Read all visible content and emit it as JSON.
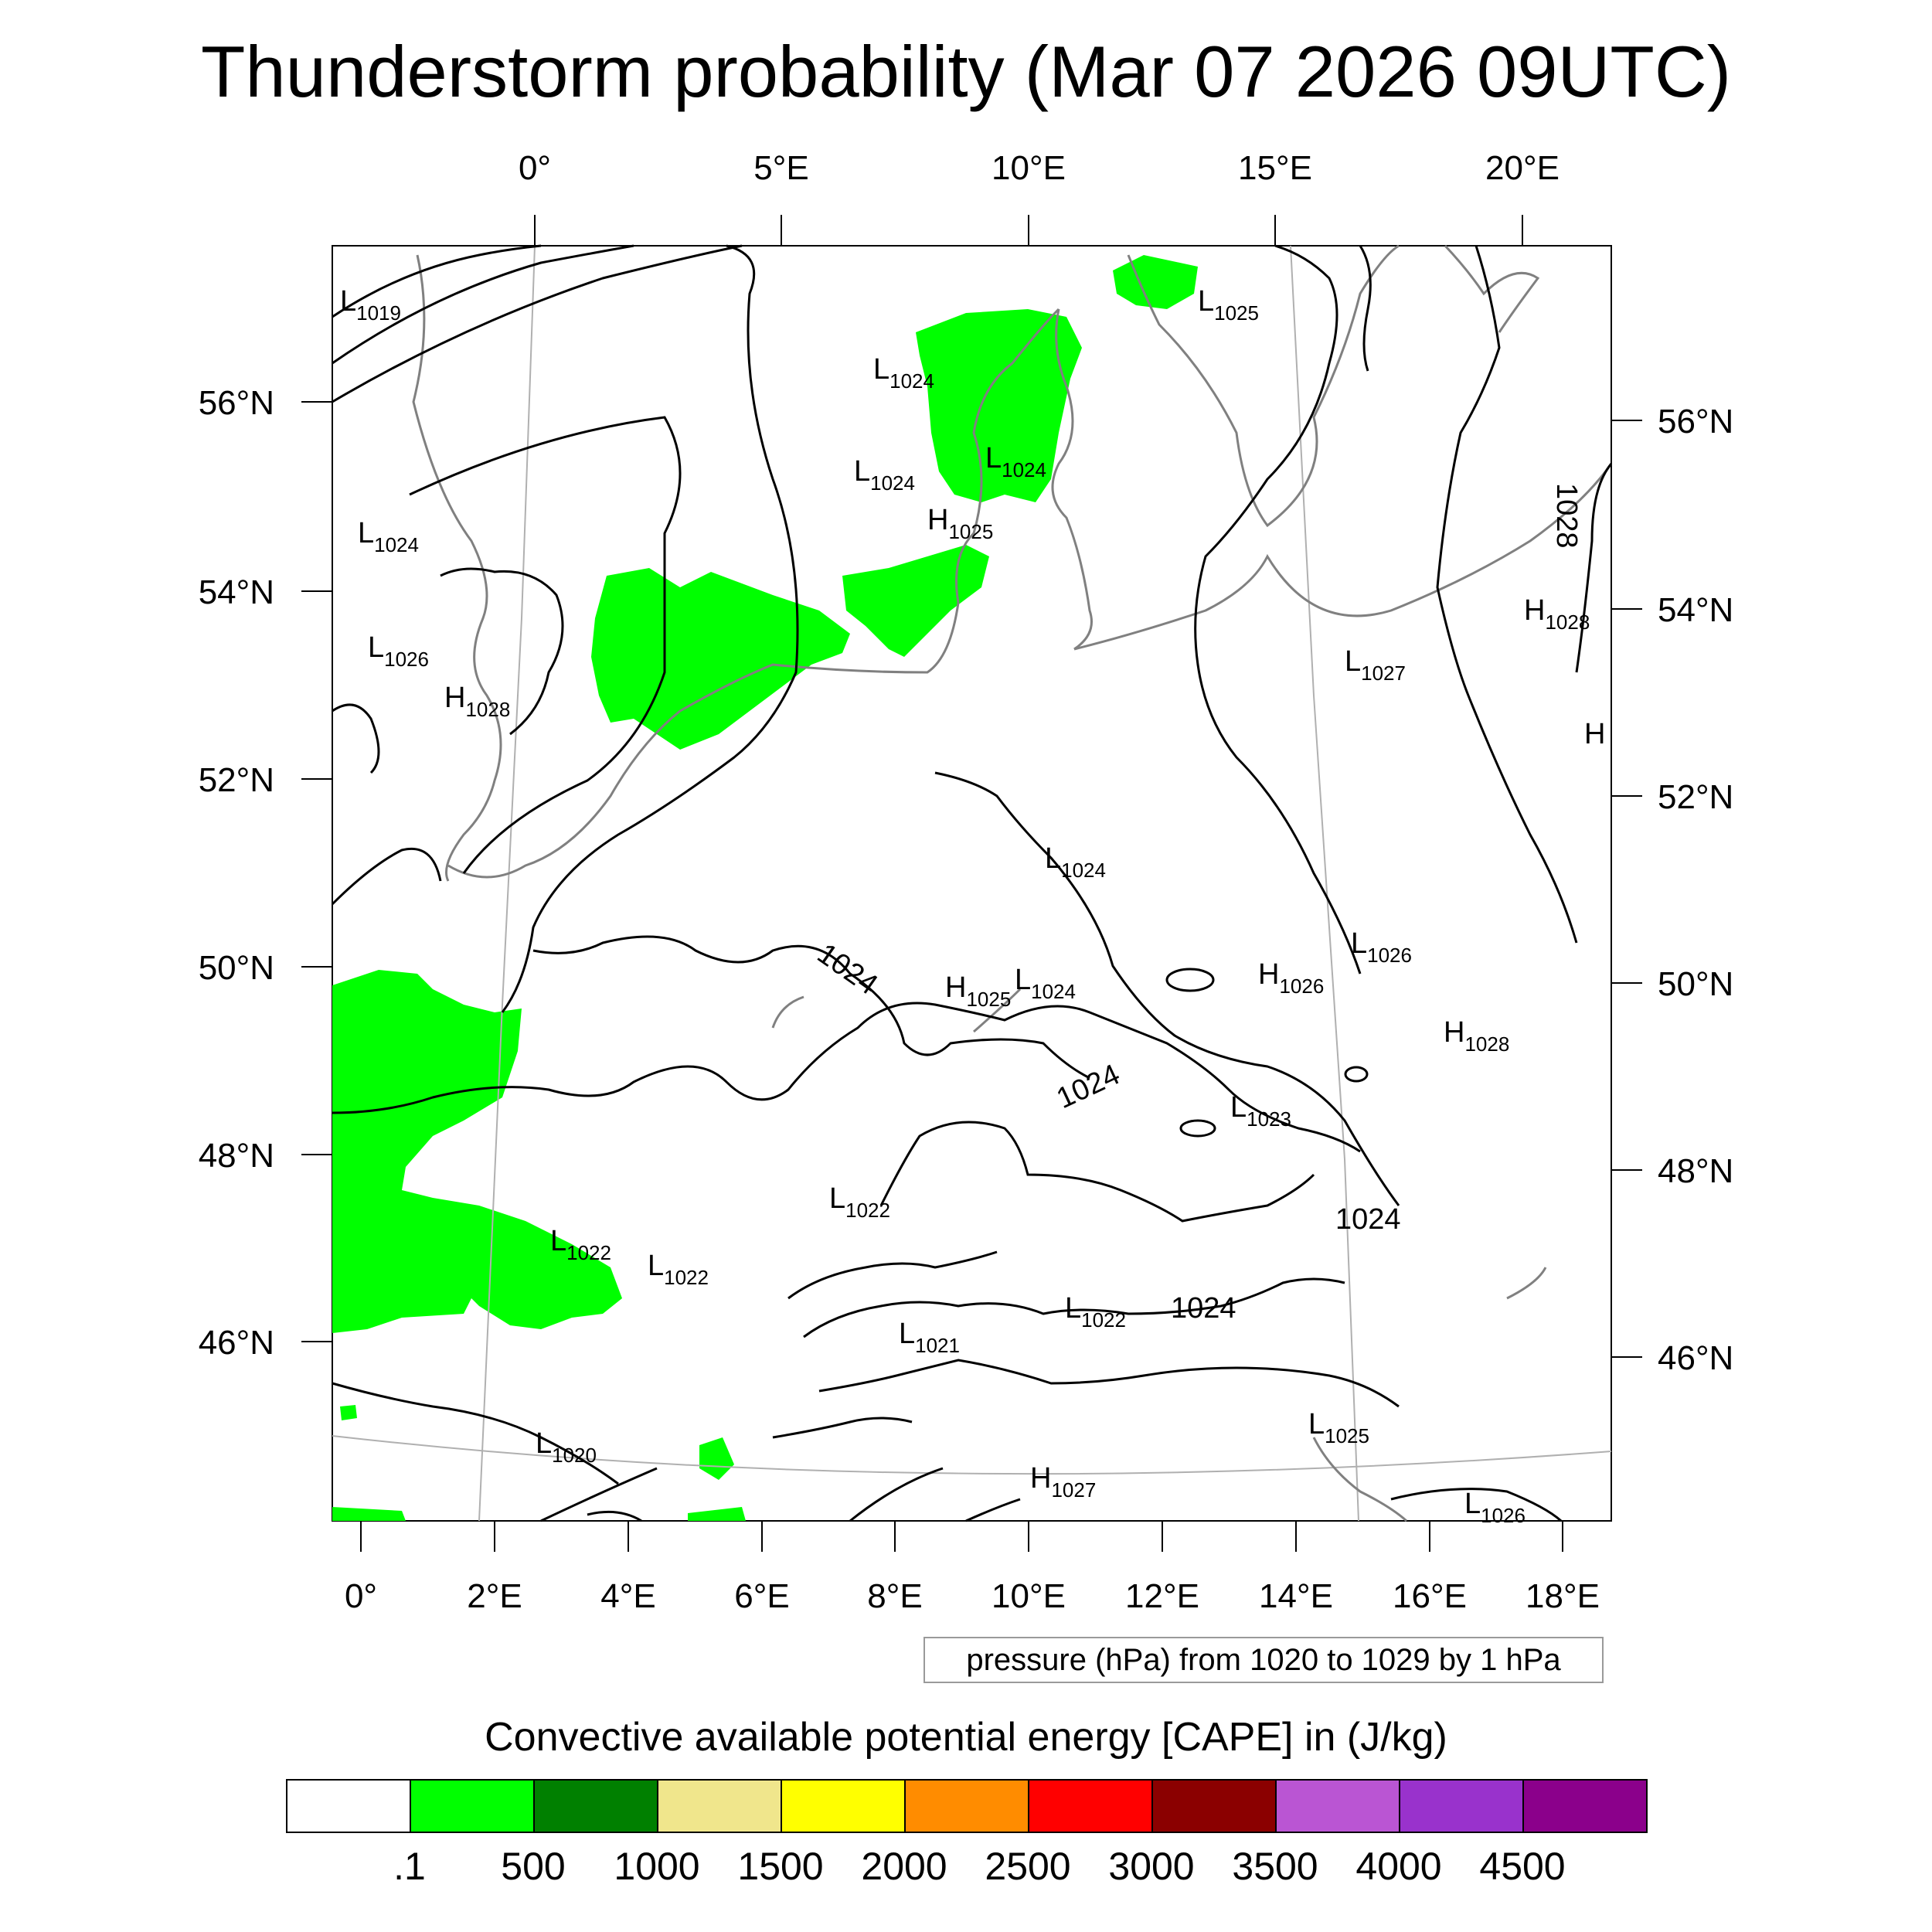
{
  "title": "Thunderstorm probability (Mar 07 2026 09UTC)",
  "top_lon_labels": [
    "0°",
    "5°E",
    "10°E",
    "15°E",
    "20°E"
  ],
  "bottom_lon_labels": [
    "0°",
    "2°E",
    "4°E",
    "6°E",
    "8°E",
    "10°E",
    "12°E",
    "14°E",
    "16°E",
    "18°E"
  ],
  "left_lat_labels": [
    "56°N",
    "54°N",
    "52°N",
    "50°N",
    "48°N",
    "46°N"
  ],
  "right_lat_labels": [
    "56°N",
    "54°N",
    "52°N",
    "50°N",
    "48°N",
    "46°N"
  ],
  "pressure_centers": [
    {
      "type": "L",
      "value": "1019"
    },
    {
      "type": "L",
      "value": "1025"
    },
    {
      "type": "L",
      "value": "1024"
    },
    {
      "type": "L",
      "value": "1024"
    },
    {
      "type": "L",
      "value": "1024"
    },
    {
      "type": "H",
      "value": "1025"
    },
    {
      "type": "L",
      "value": "1024"
    },
    {
      "type": "L",
      "value": "1026"
    },
    {
      "type": "H",
      "value": "1028"
    },
    {
      "type": "H",
      "value": "1028"
    },
    {
      "type": "L",
      "value": "1027"
    },
    {
      "type": "H",
      "value": ""
    },
    {
      "type": "L",
      "value": "1024"
    },
    {
      "type": "L",
      "value": "1026"
    },
    {
      "type": "H",
      "value": "1026"
    },
    {
      "type": "H",
      "value": "1025"
    },
    {
      "type": "L",
      "value": "1024"
    },
    {
      "type": "H",
      "value": "1028"
    },
    {
      "type": "L",
      "value": "1023"
    },
    {
      "type": "L",
      "value": "1022"
    },
    {
      "type": "L",
      "value": "1022"
    },
    {
      "type": "L",
      "value": "1022"
    },
    {
      "type": "L",
      "value": "1021"
    },
    {
      "type": "L",
      "value": "1022"
    },
    {
      "type": "L",
      "value": "1020"
    },
    {
      "type": "L",
      "value": "1025"
    },
    {
      "type": "H",
      "value": "1027"
    },
    {
      "type": "L",
      "value": "1026"
    }
  ],
  "contour_labels": [
    "1024",
    "1024",
    "1024",
    "1024",
    "1028"
  ],
  "pressure_info": "pressure (hPa) from 1020 to 1029 by 1 hPa",
  "colorbar": {
    "title": "Convective available potential energy [CAPE] in (J/kg)",
    "colors": [
      "#ffffff",
      "#00ff00",
      "#008000",
      "#f0e68c",
      "#ffff00",
      "#ff8c00",
      "#ff0000",
      "#8b0000",
      "#ba55d3",
      "#9932cc",
      "#8b008b"
    ],
    "labels": [
      ".1",
      "500",
      "1000",
      "1500",
      "2000",
      "2500",
      "3000",
      "3500",
      "4000",
      "4500"
    ]
  },
  "colors": {
    "cape_green": "#00ff00",
    "coastline": "#808080",
    "isobar": "#000000"
  }
}
